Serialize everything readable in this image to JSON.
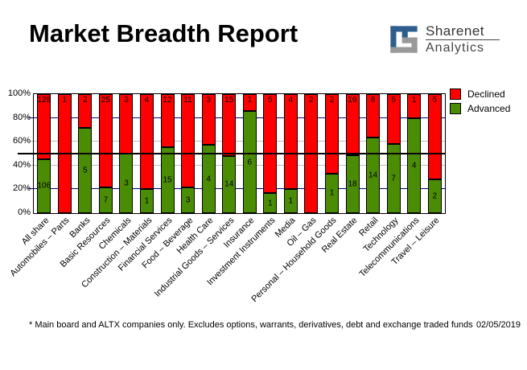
{
  "header": {
    "title": "Market Breadth Report",
    "brand": {
      "name": "Sharenet",
      "sub": "Analytics"
    }
  },
  "chart_data": {
    "type": "bar",
    "subtype": "stacked_percent_column",
    "title": "Market Breadth Report",
    "categories": [
      "All share",
      "Automobiles – Parts",
      "Banks",
      "Basic Resources",
      "Chemicals",
      "Construction – Materials",
      "Financial Services",
      "Food – Beverage",
      "Health Care",
      "Industrial Goods – Services",
      "Insurance",
      "Investment Instruments",
      "Media",
      "Oil – Gas",
      "Personal – Household Goods",
      "Real Estate",
      "Retail",
      "Technology",
      "Telecommunications",
      "Travel – Leisure"
    ],
    "series": [
      {
        "name": "Declined",
        "color": "#ff0000",
        "values": [
          128,
          1,
          2,
          25,
          3,
          4,
          12,
          11,
          3,
          15,
          1,
          5,
          4,
          2,
          2,
          19,
          8,
          5,
          1,
          5
        ]
      },
      {
        "name": "Advanced",
        "color": "#4a8c04",
        "values": [
          106,
          0,
          5,
          7,
          3,
          1,
          15,
          3,
          4,
          14,
          6,
          1,
          1,
          0,
          1,
          18,
          14,
          7,
          4,
          2
        ]
      }
    ],
    "y_axis": {
      "ticks": [
        "0%",
        "20%",
        "40%",
        "60%",
        "80%",
        "100%"
      ],
      "ylim": [
        0,
        100
      ]
    },
    "gridlines": [
      {
        "pct": 20,
        "color": "#000080"
      },
      {
        "pct": 40,
        "color": "#c0c0c0"
      },
      {
        "pct": 60,
        "color": "#c0c0c0"
      },
      {
        "pct": 80,
        "color": "#000080"
      }
    ],
    "midline": {
      "pct": 50,
      "color": "#000000"
    },
    "legend_position": "top-right",
    "legend": [
      "Declined",
      "Advanced"
    ]
  },
  "footer": {
    "note": "* Main board and ALTX companies only. Excludes options, warrants, derivatives, debt and exchange traded funds",
    "date": "02/05/2019"
  },
  "colors": {
    "declined": "#ff0000",
    "advanced": "#4a8c04",
    "grid_major": "#000080",
    "grid_minor": "#c0c0c0",
    "logo_blue": "#2d5e8c",
    "logo_gray": "#999999"
  }
}
